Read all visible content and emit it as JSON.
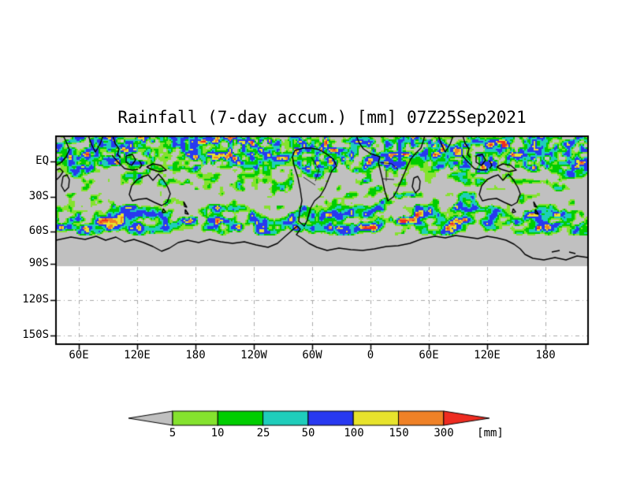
{
  "chart_data": {
    "type": "heatmap",
    "title": "Rainfall (7-day accum.) [mm] 07Z25Sep2021",
    "variable": "Rainfall",
    "accumulation": "7-day accum.",
    "valid_time": "07Z25Sep2021",
    "x_axis": {
      "ticks": [
        "60E",
        "120E",
        "180",
        "120W",
        "60W",
        "0",
        "60E",
        "120E",
        "180"
      ]
    },
    "y_axis": {
      "ticks": [
        "EQ",
        "30S",
        "60S",
        "90S",
        "120S",
        "150S"
      ]
    },
    "legend": {
      "labels": [
        "5",
        "10",
        "25",
        "50",
        "100",
        "150",
        "300"
      ],
      "bin_edges_mm": [
        5,
        10,
        25,
        50,
        100,
        150,
        300
      ],
      "unit_label": "[mm]",
      "colors": [
        "#c0c0c0",
        "#85e22e",
        "#00cd00",
        "#1fcdbb",
        "#2839f0",
        "#e7e32c",
        "#ef8126",
        "#ee2c21"
      ],
      "color_meaning": [
        "below 5",
        "5-10",
        "10-25",
        "25-50",
        "50-100",
        "100-150",
        "150-300",
        "above 300"
      ]
    },
    "colors": {
      "background": "#ffffff",
      "no_data_gray": "#c0c0c0",
      "coastline": "#000000",
      "frame": "#000000",
      "gridline": "#a8a8a8",
      "text": "#000000"
    },
    "layout": {
      "grid_style": "dash-dot graticule only below 90S",
      "legend_position": "bottom, arrow-ended colorbar",
      "lon_span_note": "longitude axis wraps past 360 degrees (60E...180...0...180 repeated)"
    },
    "bands": [
      {
        "lat": "20N-10S",
        "pattern": "heavy convective rain: blue/cyan clusters with yellow/orange/red cores (ITCZ), patchy gray gaps"
      },
      {
        "lat": "10S-35S",
        "pattern": "mostly dry gray with scattered light-green speckle"
      },
      {
        "lat": "35S-60S",
        "pattern": "zonal storm-track streaks of green/cyan with embedded blue maxima"
      },
      {
        "lat": "60S-90S",
        "pattern": "uniform gray no-data band with Antarctic coastline"
      },
      {
        "lat": "below 90S",
        "pattern": "blank white, dashed graticule only"
      }
    ]
  }
}
